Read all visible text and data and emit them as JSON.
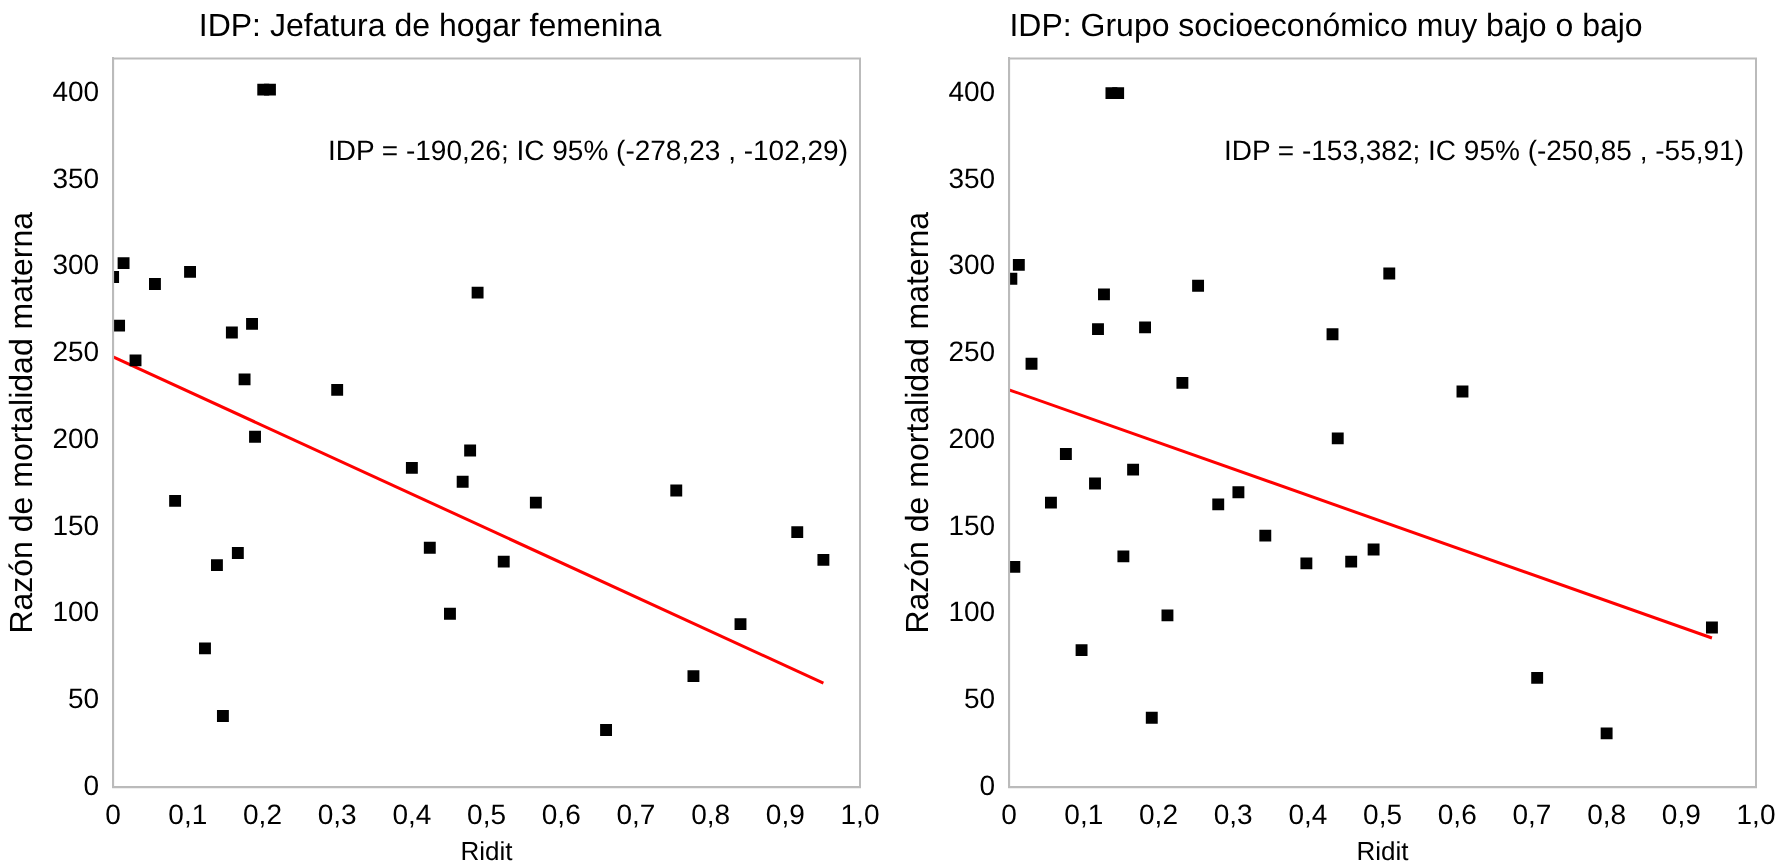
{
  "chart_data": [
    {
      "type": "scatter",
      "title": "IDP: Jefatura de hogar femenina",
      "xlabel": "Ridit",
      "ylabel": "Razón de mortalidad materna",
      "annotations": [
        "IDP = -190,26; IC 95% (-278,23 , -102,29)"
      ],
      "xlim": [
        0,
        1
      ],
      "xticks": [
        0,
        {
          "value": 0.1,
          "label": "0,1"
        },
        {
          "value": 0.2,
          "label": "0,2"
        },
        {
          "value": 0.3,
          "label": "0,3"
        },
        {
          "value": 0.4,
          "label": "0,4"
        },
        {
          "value": 0.5,
          "label": "0,5"
        },
        {
          "value": 0.6,
          "label": "0,6"
        },
        {
          "value": 0.7,
          "label": "0,7"
        },
        {
          "value": 0.8,
          "label": "0,8"
        },
        {
          "value": 0.9,
          "label": "0,9"
        },
        {
          "value": 1,
          "label": "1,0"
        }
      ],
      "ylim": [
        0,
        420
      ],
      "yticks": [
        0,
        50,
        100,
        150,
        200,
        250,
        300,
        350,
        400
      ],
      "grid": false,
      "legend": false,
      "series": [
        {
          "type": "scatter",
          "color": "#000000",
          "marker": "square",
          "x": [
            0.0,
            0.014,
            0.008,
            0.03,
            0.056,
            0.103,
            0.083,
            0.123,
            0.139,
            0.147,
            0.159,
            0.167,
            0.176,
            0.186,
            0.19,
            0.201,
            0.21,
            0.3,
            0.4,
            0.424,
            0.451,
            0.468,
            0.478,
            0.488,
            0.523,
            0.566,
            0.66,
            0.754,
            0.777,
            0.84,
            0.916,
            0.951
          ],
          "values": [
            294,
            302,
            266,
            246,
            290,
            297,
            165,
            80,
            128,
            41,
            262,
            135,
            235,
            267,
            202,
            402,
            402,
            229,
            184,
            138,
            100,
            176,
            194,
            285,
            130,
            164,
            33,
            171,
            64,
            94,
            147,
            131
          ]
        },
        {
          "type": "line",
          "color": "#ff0000",
          "marker": "none",
          "x": [
            0,
            0.951
          ],
          "values": [
            248,
            60
          ]
        }
      ]
    },
    {
      "type": "scatter",
      "title": "IDP: Grupo socioeconómico muy bajo o bajo",
      "xlabel": "Ridit",
      "ylabel": "Razón de mortalidad materna",
      "annotations": [
        "IDP = -153,382; IC 95% (-250,85 , -55,91)"
      ],
      "xlim": [
        0,
        1
      ],
      "xticks": [
        0,
        {
          "value": 0.1,
          "label": "0,1"
        },
        {
          "value": 0.2,
          "label": "0,2"
        },
        {
          "value": 0.3,
          "label": "0,3"
        },
        {
          "value": 0.4,
          "label": "0,4"
        },
        {
          "value": 0.5,
          "label": "0,5"
        },
        {
          "value": 0.6,
          "label": "0,6"
        },
        {
          "value": 0.7,
          "label": "0,7"
        },
        {
          "value": 0.8,
          "label": "0,8"
        },
        {
          "value": 0.9,
          "label": "0,9"
        },
        {
          "value": 1,
          "label": "1,0"
        }
      ],
      "ylim": [
        0,
        420
      ],
      "yticks": [
        0,
        50,
        100,
        150,
        200,
        250,
        300,
        350,
        400
      ],
      "grid": false,
      "legend": false,
      "series": [
        {
          "type": "scatter",
          "color": "#000000",
          "marker": "square",
          "x": [
            0.003,
            0.013,
            0.007,
            0.03,
            0.056,
            0.076,
            0.097,
            0.115,
            0.119,
            0.127,
            0.137,
            0.146,
            0.153,
            0.166,
            0.182,
            0.191,
            0.212,
            0.232,
            0.253,
            0.28,
            0.307,
            0.343,
            0.398,
            0.433,
            0.44,
            0.458,
            0.488,
            0.509,
            0.607,
            0.707,
            0.8,
            0.941
          ],
          "values": [
            293,
            301,
            127,
            244,
            164,
            192,
            79,
            175,
            264,
            284,
            400,
            400,
            133,
            183,
            265,
            40,
            99,
            233,
            289,
            163,
            170,
            145,
            129,
            261,
            201,
            130,
            137,
            296,
            228,
            63,
            31,
            92
          ]
        },
        {
          "type": "line",
          "color": "#ff0000",
          "marker": "none",
          "x": [
            0,
            0.941
          ],
          "values": [
            229,
            86
          ]
        }
      ]
    }
  ]
}
